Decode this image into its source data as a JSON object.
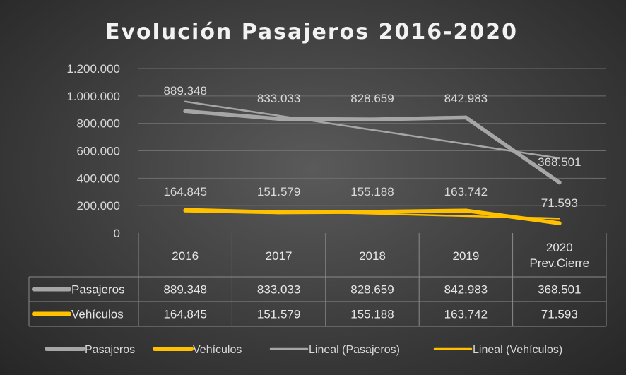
{
  "chart_data": {
    "type": "line",
    "title": "Evolución Pasajeros 2016-2020",
    "categories": [
      [
        "2016"
      ],
      [
        "2017"
      ],
      [
        "2018"
      ],
      [
        "2019"
      ],
      [
        "2020",
        "Prev.Cierre"
      ]
    ],
    "series": [
      {
        "name": "Pasajeros",
        "color": "#a6a6a6",
        "values": [
          889348,
          833033,
          828659,
          842983,
          368501
        ],
        "labels": [
          "889.348",
          "833.033",
          "828.659",
          "842.983",
          "368.501"
        ]
      },
      {
        "name": "Vehículos",
        "color": "#ffc000",
        "values": [
          164845,
          151579,
          155188,
          163742,
          71593
        ],
        "labels": [
          "164.845",
          "151.579",
          "155.188",
          "163.742",
          "71.593"
        ]
      }
    ],
    "trendlines": [
      {
        "name": "Lineal (Pasajeros)",
        "of": "Pasajeros",
        "type": "linear",
        "color": "#a6a6a6"
      },
      {
        "name": "Lineal (Vehículos)",
        "of": "Vehículos",
        "type": "linear",
        "color": "#ffc000"
      }
    ],
    "ylim": [
      0,
      1200000
    ],
    "yticks": [
      0,
      200000,
      400000,
      600000,
      800000,
      1000000,
      1200000
    ],
    "ytick_labels": [
      "0",
      "200.000",
      "400.000",
      "600.000",
      "800.000",
      "1.000.000",
      "1.200.000"
    ],
    "grid": true,
    "data_table": true,
    "legend": [
      "Pasajeros",
      "Vehículos",
      "Lineal (Pasajeros)",
      "Lineal (Vehículos)"
    ],
    "legend_position": "bottom"
  }
}
